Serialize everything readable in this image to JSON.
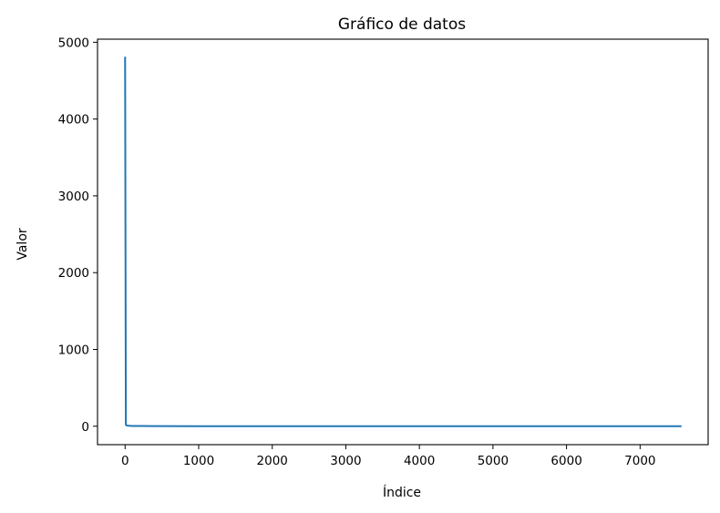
{
  "chart_data": {
    "type": "line",
    "title": "Gráfico de datos",
    "xlabel": "Índice",
    "ylabel": "Valor",
    "xlim": [
      -375,
      7925
    ],
    "ylim": [
      -240,
      5040
    ],
    "xticks": [
      0,
      1000,
      2000,
      3000,
      4000,
      5000,
      6000,
      7000
    ],
    "yticks": [
      0,
      1000,
      2000,
      3000,
      4000,
      5000
    ],
    "xtick_labels": [
      "0",
      "1000",
      "2000",
      "3000",
      "4000",
      "5000",
      "6000",
      "7000"
    ],
    "ytick_labels": [
      "0",
      "1000",
      "2000",
      "3000",
      "4000",
      "5000"
    ],
    "grid": false,
    "series": [
      {
        "color": "#1f77b4",
        "x": [
          0,
          5,
          10,
          20,
          50,
          100,
          200,
          400,
          1000,
          2000,
          4000,
          6000,
          7550
        ],
        "y": [
          4800,
          2500,
          20,
          10,
          6,
          4,
          3,
          2,
          1,
          1,
          0.5,
          0.5,
          0.5
        ]
      }
    ]
  }
}
